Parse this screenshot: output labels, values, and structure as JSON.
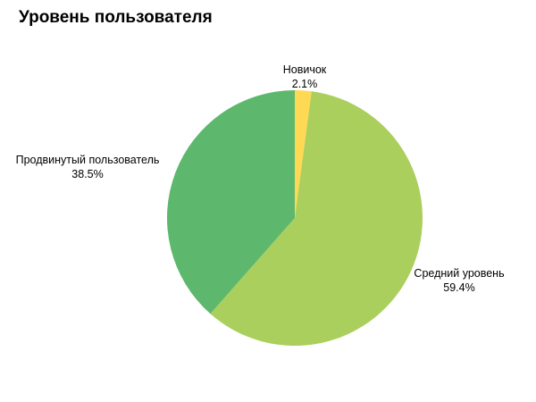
{
  "chart_data": {
    "type": "pie",
    "title": "Уровень пользователя",
    "slices": [
      {
        "label": "Новичок",
        "value": 2.1,
        "value_label": "2.1%",
        "color": "#FFD954"
      },
      {
        "label": "Средний уровень",
        "value": 59.4,
        "value_label": "59.4%",
        "color": "#AACF5C"
      },
      {
        "label": "Продвинутый пользователь",
        "value": 38.5,
        "value_label": "38.5%",
        "color": "#5DB86D"
      }
    ],
    "start_angle": "top",
    "direction": "clockwise"
  }
}
